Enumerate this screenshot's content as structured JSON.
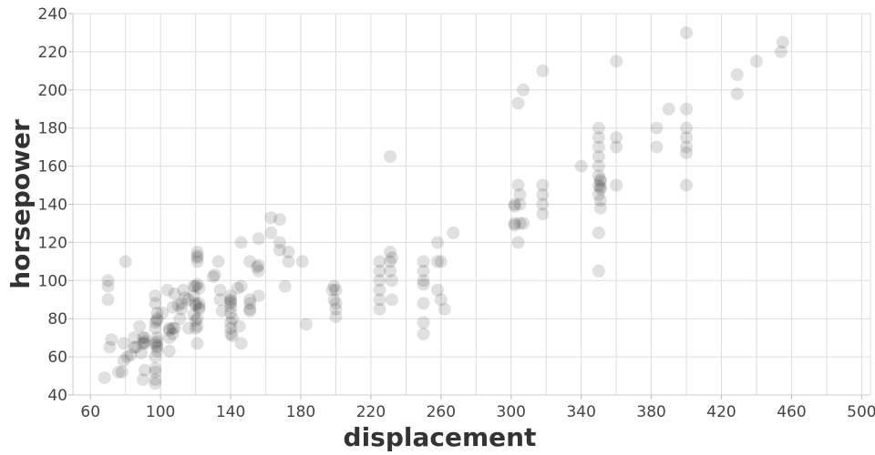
{
  "chart_data": {
    "type": "scatter",
    "title": "",
    "xlabel": "displacement",
    "ylabel": "horsepower",
    "xlim": [
      50,
      505
    ],
    "ylim": [
      40,
      240
    ],
    "x_ticks": [
      60,
      100,
      140,
      180,
      220,
      260,
      300,
      340,
      380,
      420,
      460,
      500
    ],
    "y_ticks": [
      40,
      60,
      80,
      100,
      120,
      140,
      160,
      180,
      200,
      220,
      240
    ],
    "grid": true,
    "point_color": "#000000",
    "point_opacity": 0.12,
    "points": [
      [
        68,
        49
      ],
      [
        70,
        100
      ],
      [
        70,
        97
      ],
      [
        70,
        90
      ],
      [
        71,
        65
      ],
      [
        72,
        69
      ],
      [
        76,
        52
      ],
      [
        78,
        52
      ],
      [
        79,
        58
      ],
      [
        79,
        67
      ],
      [
        80,
        110
      ],
      [
        81,
        60
      ],
      [
        83,
        61
      ],
      [
        85,
        65
      ],
      [
        85,
        70
      ],
      [
        86,
        65
      ],
      [
        88,
        76
      ],
      [
        89,
        62
      ],
      [
        90,
        48
      ],
      [
        90,
        67
      ],
      [
        90,
        70
      ],
      [
        91,
        53
      ],
      [
        91,
        67
      ],
      [
        91,
        68
      ],
      [
        91,
        70
      ],
      [
        97,
        46
      ],
      [
        97,
        48
      ],
      [
        97,
        52
      ],
      [
        97,
        54
      ],
      [
        97,
        60
      ],
      [
        97,
        67
      ],
      [
        97,
        75
      ],
      [
        97,
        78
      ],
      [
        97,
        88
      ],
      [
        97,
        92
      ],
      [
        98,
        63
      ],
      [
        98,
        65
      ],
      [
        98,
        66
      ],
      [
        98,
        68
      ],
      [
        98,
        70
      ],
      [
        98,
        79
      ],
      [
        98,
        80
      ],
      [
        98,
        83
      ],
      [
        101,
        83
      ],
      [
        104,
        95
      ],
      [
        105,
        63
      ],
      [
        105,
        70
      ],
      [
        105,
        74
      ],
      [
        105,
        75
      ],
      [
        107,
        72
      ],
      [
        107,
        75
      ],
      [
        107,
        86
      ],
      [
        108,
        75
      ],
      [
        108,
        93
      ],
      [
        110,
        87
      ],
      [
        111,
        80
      ],
      [
        112,
        85
      ],
      [
        112,
        88
      ],
      [
        113,
        95
      ],
      [
        114,
        91
      ],
      [
        116,
        75
      ],
      [
        116,
        90
      ],
      [
        119,
        82
      ],
      [
        119,
        92
      ],
      [
        119,
        97
      ],
      [
        120,
        75
      ],
      [
        120,
        79
      ],
      [
        120,
        87
      ],
      [
        120,
        88
      ],
      [
        120,
        97
      ],
      [
        121,
        67
      ],
      [
        121,
        76
      ],
      [
        121,
        80
      ],
      [
        121,
        98
      ],
      [
        121,
        110
      ],
      [
        121,
        112
      ],
      [
        121,
        113
      ],
      [
        121,
        115
      ],
      [
        122,
        85
      ],
      [
        122,
        86
      ],
      [
        122,
        88
      ],
      [
        122,
        96
      ],
      [
        130,
        102
      ],
      [
        131,
        103
      ],
      [
        133,
        110
      ],
      [
        134,
        90
      ],
      [
        134,
        95
      ],
      [
        135,
        84
      ],
      [
        140,
        72
      ],
      [
        140,
        75
      ],
      [
        140,
        78
      ],
      [
        140,
        83
      ],
      [
        140,
        86
      ],
      [
        140,
        88
      ],
      [
        140,
        89
      ],
      [
        140,
        90
      ],
      [
        140,
        92
      ],
      [
        141,
        71
      ],
      [
        141,
        80
      ],
      [
        144,
        96
      ],
      [
        145,
        76
      ],
      [
        146,
        67
      ],
      [
        146,
        97
      ],
      [
        146,
        120
      ],
      [
        151,
        84
      ],
      [
        151,
        85
      ],
      [
        151,
        88
      ],
      [
        151,
        90
      ],
      [
        151,
        110
      ],
      [
        155,
        107
      ],
      [
        156,
        92
      ],
      [
        156,
        105
      ],
      [
        156,
        108
      ],
      [
        156,
        122
      ],
      [
        163,
        125
      ],
      [
        163,
        133
      ],
      [
        168,
        116
      ],
      [
        168,
        120
      ],
      [
        168,
        132
      ],
      [
        171,
        97
      ],
      [
        173,
        110
      ],
      [
        173,
        115
      ],
      [
        181,
        110
      ],
      [
        183,
        77
      ],
      [
        198,
        95
      ],
      [
        199,
        90
      ],
      [
        199,
        97
      ],
      [
        200,
        81
      ],
      [
        200,
        85
      ],
      [
        200,
        88
      ],
      [
        200,
        95
      ],
      [
        225,
        85
      ],
      [
        225,
        90
      ],
      [
        225,
        95
      ],
      [
        225,
        100
      ],
      [
        225,
        105
      ],
      [
        225,
        110
      ],
      [
        231,
        105
      ],
      [
        231,
        110
      ],
      [
        231,
        115
      ],
      [
        231,
        165
      ],
      [
        232,
        90
      ],
      [
        232,
        100
      ],
      [
        232,
        112
      ],
      [
        250,
        72
      ],
      [
        250,
        78
      ],
      [
        250,
        88
      ],
      [
        250,
        98
      ],
      [
        250,
        100
      ],
      [
        250,
        105
      ],
      [
        250,
        110
      ],
      [
        258,
        95
      ],
      [
        258,
        110
      ],
      [
        258,
        120
      ],
      [
        260,
        90
      ],
      [
        260,
        110
      ],
      [
        262,
        85
      ],
      [
        267,
        125
      ],
      [
        302,
        129
      ],
      [
        302,
        130
      ],
      [
        302,
        139
      ],
      [
        302,
        140
      ],
      [
        304,
        120
      ],
      [
        304,
        150
      ],
      [
        304,
        193
      ],
      [
        305,
        130
      ],
      [
        305,
        140
      ],
      [
        305,
        145
      ],
      [
        307,
        130
      ],
      [
        307,
        200
      ],
      [
        318,
        135
      ],
      [
        318,
        140
      ],
      [
        318,
        145
      ],
      [
        318,
        150
      ],
      [
        318,
        210
      ],
      [
        340,
        160
      ],
      [
        350,
        105
      ],
      [
        350,
        125
      ],
      [
        350,
        145
      ],
      [
        350,
        150
      ],
      [
        350,
        155
      ],
      [
        350,
        160
      ],
      [
        350,
        165
      ],
      [
        350,
        170
      ],
      [
        350,
        175
      ],
      [
        350,
        180
      ],
      [
        351,
        138
      ],
      [
        351,
        142
      ],
      [
        351,
        148
      ],
      [
        351,
        149
      ],
      [
        351,
        152
      ],
      [
        351,
        153
      ],
      [
        360,
        150
      ],
      [
        360,
        170
      ],
      [
        360,
        175
      ],
      [
        360,
        215
      ],
      [
        383,
        170
      ],
      [
        383,
        180
      ],
      [
        390,
        190
      ],
      [
        400,
        150
      ],
      [
        400,
        167
      ],
      [
        400,
        170
      ],
      [
        400,
        175
      ],
      [
        400,
        180
      ],
      [
        400,
        190
      ],
      [
        400,
        230
      ],
      [
        429,
        198
      ],
      [
        429,
        208
      ],
      [
        440,
        215
      ],
      [
        454,
        220
      ],
      [
        455,
        225
      ]
    ]
  }
}
